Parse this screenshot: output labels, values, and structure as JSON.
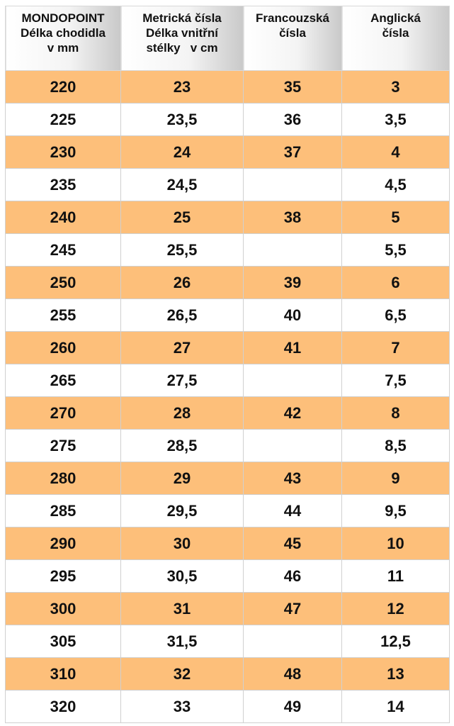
{
  "colors": {
    "row_highlight": "#fdbf7a",
    "row_plain": "#ffffff"
  },
  "headers": [
    [
      "MONDOPOINT",
      "Délka chodidla",
      "v mm"
    ],
    [
      "Metrická čísla",
      "Délka vnitřní",
      "stélky   v cm"
    ],
    [
      "Francouzská",
      "čísla"
    ],
    [
      "Anglická",
      "čísla"
    ]
  ],
  "rows": [
    [
      "220",
      "23",
      "35",
      "3"
    ],
    [
      "225",
      "23,5",
      "36",
      "3,5"
    ],
    [
      "230",
      "24",
      "37",
      "4"
    ],
    [
      "235",
      "24,5",
      "",
      "4,5"
    ],
    [
      "240",
      "25",
      "38",
      "5"
    ],
    [
      "245",
      "25,5",
      "",
      "5,5"
    ],
    [
      "250",
      "26",
      "39",
      "6"
    ],
    [
      "255",
      "26,5",
      "40",
      "6,5"
    ],
    [
      "260",
      "27",
      "41",
      "7"
    ],
    [
      "265",
      "27,5",
      "",
      "7,5"
    ],
    [
      "270",
      "28",
      "42",
      "8"
    ],
    [
      "275",
      "28,5",
      "",
      "8,5"
    ],
    [
      "280",
      "29",
      "43",
      "9"
    ],
    [
      "285",
      "29,5",
      "44",
      "9,5"
    ],
    [
      "290",
      "30",
      "45",
      "10"
    ],
    [
      "295",
      "30,5",
      "46",
      "11"
    ],
    [
      "300",
      "31",
      "47",
      "12"
    ],
    [
      "305",
      "31,5",
      "",
      "12,5"
    ],
    [
      "310",
      "32",
      "48",
      "13"
    ],
    [
      "320",
      "33",
      "49",
      "14"
    ]
  ]
}
